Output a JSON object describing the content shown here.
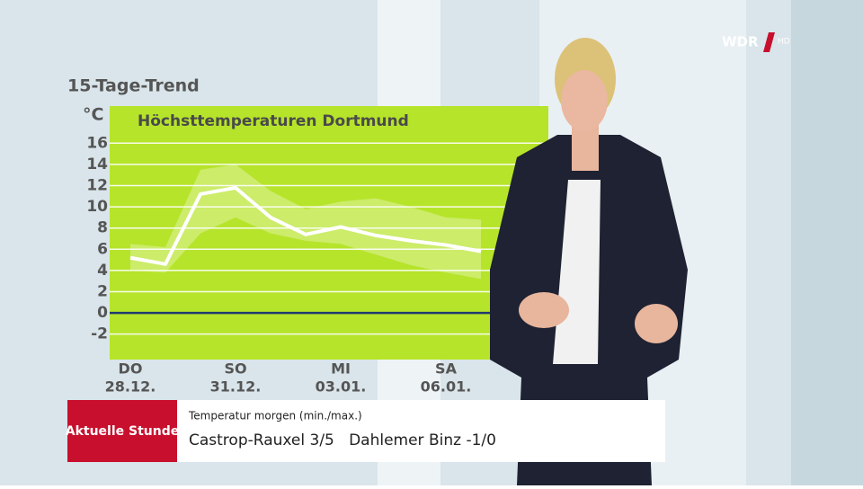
{
  "chart_data": {
    "type": "line",
    "heading": "15-Tage-Trend",
    "unit": "°C",
    "title": "Höchsttemperaturen Dortmund",
    "weekdays": [
      "DO",
      null,
      null,
      "SO",
      null,
      null,
      "MI",
      null,
      null,
      "SA",
      null
    ],
    "categories": [
      "28.12.",
      null,
      null,
      "31.12.",
      null,
      null,
      "03.01.",
      null,
      null,
      "06.01.",
      null
    ],
    "values": [
      5.2,
      4.6,
      11.2,
      11.8,
      9.0,
      7.4,
      8.1,
      7.3,
      6.8,
      6.4,
      5.8
    ],
    "range": {
      "high": [
        6.5,
        6.2,
        13.5,
        14.0,
        11.5,
        9.8,
        10.5,
        10.8,
        10.0,
        9.0,
        8.8
      ],
      "low": [
        4.0,
        3.8,
        7.5,
        9.0,
        7.5,
        6.8,
        6.5,
        5.5,
        4.5,
        3.8,
        3.2
      ]
    },
    "color": "#ffffff",
    "background": "#b6e42a",
    "zero_line_color": "#1f3a6e",
    "ylim": [
      -4.4,
      19.5
    ],
    "yticks": [
      -2,
      0,
      2,
      4,
      6,
      8,
      10,
      12,
      14,
      16
    ],
    "grid": true
  },
  "ticker": {
    "label": "Aktuelle Stunde",
    "caption": "Temperatur morgen (min./max.)",
    "text": "Castrop-Rauxel 3/5   Dahlemer Binz -1/0"
  },
  "logo": {
    "name": "WDR",
    "suffix": "HD"
  }
}
